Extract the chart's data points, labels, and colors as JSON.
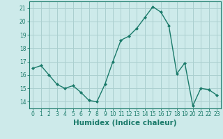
{
  "x": [
    0,
    1,
    2,
    3,
    4,
    5,
    6,
    7,
    8,
    9,
    10,
    11,
    12,
    13,
    14,
    15,
    16,
    17,
    18,
    19,
    20,
    21,
    22,
    23
  ],
  "y": [
    16.5,
    16.7,
    16.0,
    15.3,
    15.0,
    15.2,
    14.7,
    14.1,
    14.0,
    15.3,
    17.0,
    18.6,
    18.9,
    19.5,
    20.3,
    21.1,
    20.7,
    19.7,
    16.1,
    16.9,
    13.7,
    15.0,
    14.9,
    14.5
  ],
  "line_color": "#1a7a6a",
  "marker": "D",
  "marker_size": 2.0,
  "bg_color": "#cdeaea",
  "grid_color": "#aacfcf",
  "xlabel": "Humidex (Indice chaleur)",
  "ylim": [
    13.5,
    21.5
  ],
  "xlim": [
    -0.5,
    23.5
  ],
  "yticks": [
    14,
    15,
    16,
    17,
    18,
    19,
    20,
    21
  ],
  "xticks": [
    0,
    1,
    2,
    3,
    4,
    5,
    6,
    7,
    8,
    9,
    10,
    11,
    12,
    13,
    14,
    15,
    16,
    17,
    18,
    19,
    20,
    21,
    22,
    23
  ],
  "tick_fontsize": 5.5,
  "xlabel_fontsize": 7.5,
  "line_width": 1.0
}
